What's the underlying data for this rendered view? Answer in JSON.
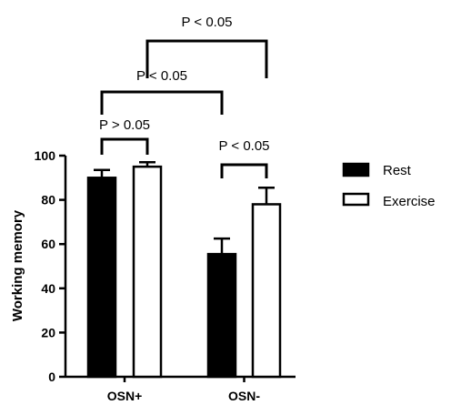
{
  "chart_data": {
    "type": "bar",
    "categories": [
      "OSN+",
      "OSN-"
    ],
    "ylabel": "Working memory",
    "xlabel": "",
    "ylim": [
      0,
      100
    ],
    "yticks": [
      0,
      20,
      40,
      60,
      80,
      100
    ],
    "series": [
      {
        "name": "Rest",
        "values": [
          90,
          55.5
        ],
        "errors": [
          3.5,
          7
        ],
        "fill": "#000000"
      },
      {
        "name": "Exercise",
        "values": [
          95,
          78
        ],
        "errors": [
          2,
          7.5
        ],
        "fill": "#ffffff"
      }
    ],
    "legend_position": "right",
    "significance": [
      {
        "label": "P > 0.05",
        "between": [
          "OSN+ Rest",
          "OSN+ Exercise"
        ]
      },
      {
        "label": "P < 0.05",
        "between": [
          "OSN- Rest",
          "OSN- Exercise"
        ]
      },
      {
        "label": "P < 0.05",
        "between": [
          "OSN+ Rest",
          "OSN- Rest"
        ]
      },
      {
        "label": "P < 0.05",
        "between": [
          "OSN+ Exercise",
          "OSN- Exercise"
        ]
      }
    ]
  }
}
